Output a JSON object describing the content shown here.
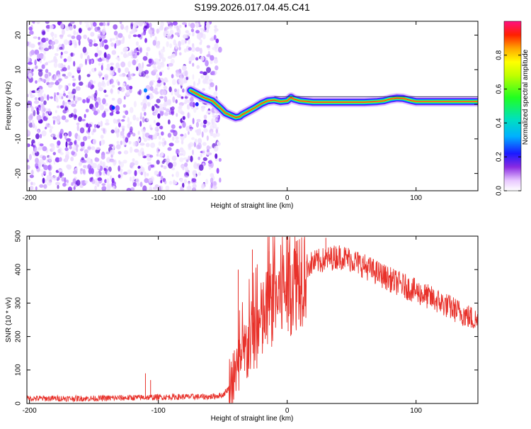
{
  "title": "S199.2026.017.04.45.C41",
  "chart_data": [
    {
      "type": "heatmap",
      "name": "spectrogram",
      "title": "S199.2026.017.04.45.C41",
      "xlabel": "Height of straight line (km)",
      "ylabel": "Frequency (Hz)",
      "xlim": [
        -202,
        148
      ],
      "ylim": [
        -25,
        24
      ],
      "x_ticks": [
        -200,
        -100,
        0,
        100
      ],
      "x_tick_labels": [
        "-200",
        "-100",
        "0",
        "100"
      ],
      "y_ticks": [
        -20,
        -10,
        0,
        10,
        20
      ],
      "y_tick_labels": [
        "-20",
        "-10",
        "0",
        "10",
        "20"
      ],
      "noise_region_x": [
        -202,
        -52
      ],
      "signal_track": {
        "x": [
          -75,
          -65,
          -58,
          -52,
          -48,
          -45,
          -42,
          -40,
          -37,
          -35,
          -30,
          -25,
          -20,
          -15,
          -10,
          -5,
          0,
          3,
          5,
          10,
          20,
          40,
          60,
          70,
          75,
          80,
          85,
          90,
          95,
          100,
          120,
          148
        ],
        "y": [
          4,
          2,
          1,
          -1,
          -2.5,
          -3,
          -3.5,
          -3.8,
          -3.6,
          -3,
          -2,
          -1,
          0.2,
          1,
          1.2,
          0.8,
          1,
          2,
          1.5,
          1,
          0.6,
          0.6,
          0.6,
          0.8,
          1,
          1.5,
          1.8,
          1.7,
          1.2,
          0.8,
          0.8,
          0.8
        ]
      },
      "colorbar": {
        "label": "Normalized spectral amplitude",
        "range": [
          0,
          1
        ],
        "ticks": [
          0.0,
          0.2,
          0.4,
          0.6,
          0.8
        ],
        "tick_labels": [
          "0.0",
          "0.2",
          "0.4",
          "0.6",
          "0.8"
        ]
      }
    },
    {
      "type": "line",
      "name": "snr",
      "xlabel": "Height of straight line (km)",
      "ylabel": "SNR (10 * v/v)",
      "xlim": [
        -202,
        148
      ],
      "ylim": [
        0,
        500
      ],
      "x_ticks": [
        -200,
        -100,
        0,
        100
      ],
      "x_tick_labels": [
        "-200",
        "-100",
        "0",
        "100"
      ],
      "y_ticks": [
        0,
        100,
        200,
        300,
        400,
        500
      ],
      "y_tick_labels": [
        "0",
        "100",
        "200",
        "300",
        "400",
        "500"
      ],
      "color": "#e8312a",
      "envelope": {
        "x": [
          -202,
          -150,
          -110,
          -80,
          -60,
          -50,
          -42,
          -35,
          -30,
          -25,
          -20,
          -15,
          -10,
          -5,
          0,
          5,
          10,
          15,
          20,
          30,
          40,
          50,
          60,
          80,
          100,
          120,
          148
        ],
        "y": [
          15,
          15,
          18,
          20,
          20,
          25,
          60,
          120,
          180,
          200,
          240,
          280,
          310,
          330,
          345,
          370,
          390,
          410,
          420,
          430,
          440,
          430,
          410,
          370,
          335,
          300,
          245
        ]
      },
      "spikes": [
        {
          "x": -110,
          "y": 90
        },
        {
          "x": -106,
          "y": 70
        },
        {
          "x": -38,
          "y": 400
        },
        {
          "x": -27,
          "y": 460
        },
        {
          "x": -14,
          "y": 455
        },
        {
          "x": 7,
          "y": 485
        },
        {
          "x": 30,
          "y": 495
        }
      ]
    }
  ]
}
